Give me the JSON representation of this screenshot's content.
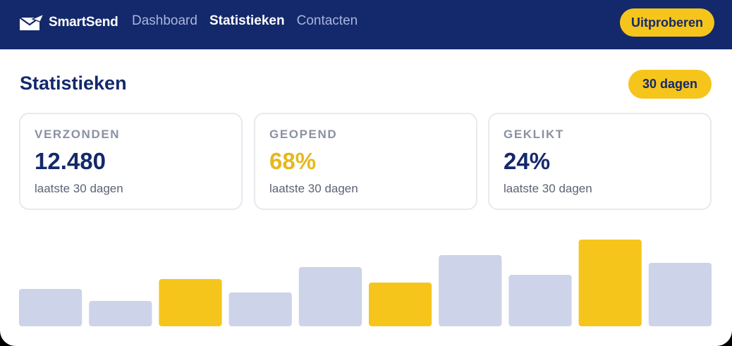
{
  "app": {
    "brand": "SmartSend",
    "cta_label": "Uitproberen",
    "colors": {
      "navy": "#14296b",
      "accent": "#f6c51c",
      "muted_bar": "#cdd3e8"
    }
  },
  "nav": {
    "items": [
      {
        "label": "Dashboard",
        "active": false
      },
      {
        "label": "Statistieken",
        "active": true
      },
      {
        "label": "Contacten",
        "active": false
      }
    ]
  },
  "page": {
    "title": "Statistieken",
    "period_label": "30 dagen"
  },
  "stats": [
    {
      "label": "VERZONDEN",
      "value": "12.480",
      "sub": "laatste 30 dagen",
      "value_color": "#14296b"
    },
    {
      "label": "GEOPEND",
      "value": "68%",
      "sub": "laatste 30 dagen",
      "value_color": "#e6b81e"
    },
    {
      "label": "GEKLIKT",
      "value": "24%",
      "sub": "laatste 30 dagen",
      "value_color": "#14296b"
    }
  ],
  "chart_data": {
    "type": "bar",
    "values": [
      53,
      36,
      67,
      48,
      84,
      62,
      101,
      73,
      123,
      90
    ],
    "highlighted": [
      false,
      false,
      true,
      false,
      false,
      true,
      false,
      false,
      true,
      false
    ],
    "ylim": [
      0,
      143
    ],
    "grid": false,
    "legend": "none"
  }
}
